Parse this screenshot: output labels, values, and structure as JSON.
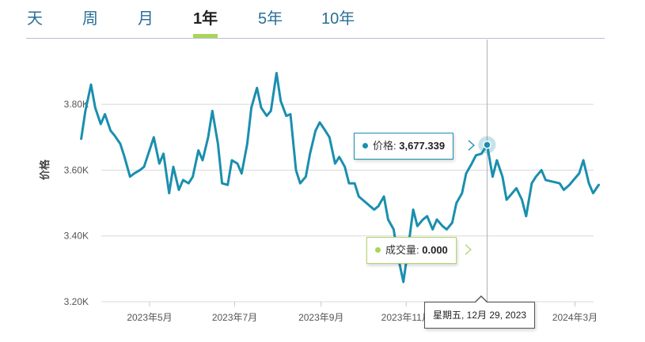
{
  "tabs": [
    {
      "label": "天",
      "active": false
    },
    {
      "label": "周",
      "active": false
    },
    {
      "label": "月",
      "active": false
    },
    {
      "label": "1年",
      "active": true
    },
    {
      "label": "5年",
      "active": false
    },
    {
      "label": "10年",
      "active": false
    }
  ],
  "colors": {
    "line": "#1a8fae",
    "accent": "#a8d65a",
    "tab": "#2a6f97",
    "grid": "#d8d8d8"
  },
  "tooltip": {
    "price_label": "价格",
    "price_value": "3,677.339",
    "volume_label": "成交量",
    "volume_value": "0.000",
    "date": "星期五, 12月 29, 2023"
  },
  "chart_data": {
    "type": "line",
    "ylabel": "价格",
    "ylim": [
      3200,
      3950
    ],
    "y_ticks": [
      {
        "value": 3200,
        "label": "3.20K"
      },
      {
        "value": 3400,
        "label": "3.40K"
      },
      {
        "value": 3600,
        "label": "3.60K"
      },
      {
        "value": 3800,
        "label": "3.80K"
      }
    ],
    "x_ticks": [
      {
        "x": "2023-05-01",
        "label": "2023年5月"
      },
      {
        "x": "2023-07-01",
        "label": "2023年7月"
      },
      {
        "x": "2023-09-01",
        "label": "2023年9月"
      },
      {
        "x": "2023-11-01",
        "label": "2023年11月"
      },
      {
        "x": "2024-03-01",
        "label": "2024年3月"
      }
    ],
    "crosshair_x": "2023-12-29",
    "series": [
      {
        "x": [
          "2023-03-13",
          "2023-03-16",
          "2023-03-20",
          "2023-03-23",
          "2023-03-27",
          "2023-03-30",
          "2023-04-03",
          "2023-04-06",
          "2023-04-10",
          "2023-04-13",
          "2023-04-17",
          "2023-04-20",
          "2023-04-24",
          "2023-04-27",
          "2023-05-04",
          "2023-05-08",
          "2023-05-11",
          "2023-05-15",
          "2023-05-18",
          "2023-05-22",
          "2023-05-25",
          "2023-05-29",
          "2023-06-01",
          "2023-06-05",
          "2023-06-08",
          "2023-06-12",
          "2023-06-15",
          "2023-06-19",
          "2023-06-22",
          "2023-06-26",
          "2023-06-29",
          "2023-07-03",
          "2023-07-06",
          "2023-07-10",
          "2023-07-13",
          "2023-07-17",
          "2023-07-20",
          "2023-07-24",
          "2023-07-27",
          "2023-07-31",
          "2023-08-03",
          "2023-08-07",
          "2023-08-10",
          "2023-08-14",
          "2023-08-17",
          "2023-08-21",
          "2023-08-24",
          "2023-08-28",
          "2023-08-31",
          "2023-09-04",
          "2023-09-07",
          "2023-09-11",
          "2023-09-14",
          "2023-09-18",
          "2023-09-21",
          "2023-09-25",
          "2023-09-28",
          "2023-10-09",
          "2023-10-12",
          "2023-10-16",
          "2023-10-19",
          "2023-10-23",
          "2023-10-26",
          "2023-10-30",
          "2023-11-02",
          "2023-11-06",
          "2023-11-09",
          "2023-11-13",
          "2023-11-16",
          "2023-11-20",
          "2023-11-23",
          "2023-11-27",
          "2023-11-30",
          "2023-12-04",
          "2023-12-07",
          "2023-12-11",
          "2023-12-14",
          "2023-12-18",
          "2023-12-21",
          "2023-12-25",
          "2023-12-29",
          "2024-01-02",
          "2024-01-05",
          "2024-01-09",
          "2024-01-12",
          "2024-01-16",
          "2024-01-19",
          "2024-01-23",
          "2024-01-26",
          "2024-01-30",
          "2024-02-02",
          "2024-02-06",
          "2024-02-09",
          "2024-02-19",
          "2024-02-22",
          "2024-02-26",
          "2024-02-29",
          "2024-03-04",
          "2024-03-07",
          "2024-03-11",
          "2024-03-14",
          "2024-03-18"
        ],
        "values": [
          3695,
          3780,
          3860,
          3790,
          3740,
          3770,
          3720,
          3705,
          3680,
          3640,
          3580,
          3590,
          3600,
          3610,
          3700,
          3620,
          3650,
          3530,
          3610,
          3540,
          3570,
          3560,
          3580,
          3660,
          3630,
          3700,
          3780,
          3680,
          3560,
          3555,
          3630,
          3620,
          3590,
          3680,
          3790,
          3850,
          3790,
          3765,
          3780,
          3895,
          3810,
          3765,
          3770,
          3600,
          3560,
          3580,
          3650,
          3720,
          3745,
          3720,
          3700,
          3620,
          3640,
          3610,
          3560,
          3560,
          3520,
          3480,
          3490,
          3520,
          3450,
          3420,
          3340,
          3260,
          3350,
          3480,
          3430,
          3450,
          3460,
          3420,
          3450,
          3430,
          3420,
          3440,
          3500,
          3530,
          3590,
          3620,
          3645,
          3650,
          3677,
          3580,
          3630,
          3580,
          3510,
          3530,
          3545,
          3510,
          3460,
          3560,
          3580,
          3600,
          3570,
          3560,
          3540,
          3555,
          3570,
          3590,
          3630,
          3560,
          3530,
          3555
        ]
      }
    ]
  }
}
